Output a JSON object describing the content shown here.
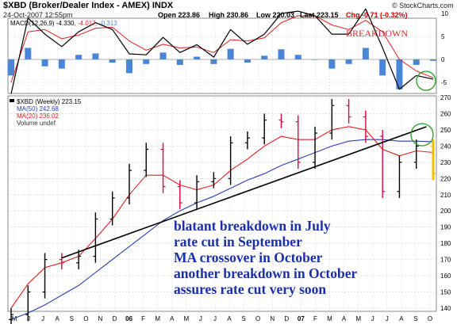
{
  "header": {
    "symbol_title": "$XBD (Broker/Dealer Index - AMEX) INDX",
    "date_time": "24-Oct-2007 12:55pm",
    "open": "Open 223.86",
    "high": "High 230.86",
    "low": "Low 220.03",
    "last": "Last 223.15",
    "chg": "Chg -0.71 (-0.32%)",
    "watermark": "© StockCharts.com"
  },
  "colors": {
    "price_bar_up": "#000000",
    "price_bar_down": "#e0003c",
    "last_bar": "#f0c000",
    "ma50": "#2a3fb0",
    "ma20": "#e02020",
    "macd_line": "#000000",
    "signal_line": "#e02020",
    "histogram": "#4a86d8",
    "trendline": "#000000",
    "annotation_text": "#1a2fa8",
    "breakdown_text": "#d03030",
    "circle": "#22a022"
  },
  "chart_data": [
    {
      "type": "line",
      "title": "MACD(12,26,9) -4.330, -4.017, -0.313",
      "legend_parts": [
        "MACD(12,26,9) -4.330,",
        "-4.017,",
        "-0.313"
      ],
      "annotation": "BREAKDOWN",
      "ylim": [
        -10,
        10
      ],
      "y_ticks": [
        10,
        5,
        0,
        -5
      ],
      "series": [
        {
          "name": "MACD",
          "x": [
            0,
            5,
            10,
            15,
            20,
            25,
            30,
            35,
            40,
            45,
            50,
            55,
            60,
            65,
            70,
            75,
            80,
            85,
            90,
            95,
            100,
            105,
            110,
            115,
            120,
            125
          ],
          "values": [
            -7.5,
            9,
            5.5,
            2.8,
            6,
            8,
            6.5,
            1.2,
            1,
            4.8,
            1.5,
            3.2,
            0.5,
            6.5,
            3.3,
            5.5,
            10,
            10.5,
            9.5,
            5.5,
            5.5,
            11,
            2.5,
            -6.5,
            -3.5,
            -4.3
          ]
        },
        {
          "name": "Signal",
          "x": [
            0,
            5,
            10,
            15,
            20,
            25,
            30,
            35,
            40,
            45,
            50,
            55,
            60,
            65,
            70,
            75,
            80,
            85,
            90,
            95,
            100,
            105,
            110,
            115,
            120,
            125
          ],
          "values": [
            -5,
            6,
            6.5,
            4.5,
            5.3,
            6.8,
            7,
            4,
            2,
            3.3,
            2.5,
            2.7,
            1.5,
            4.3,
            4,
            4.7,
            8,
            9.5,
            9.5,
            7.5,
            6.5,
            8.5,
            6,
            0,
            -2.5,
            -4
          ]
        },
        {
          "name": "Histogram",
          "values": [
            -3.5,
            2.5,
            -1.5,
            -2,
            1,
            1.3,
            -0.7,
            -3,
            -1,
            1.5,
            -1.2,
            0.6,
            -1,
            2.3,
            -0.7,
            0.8,
            2.2,
            1,
            0,
            -2,
            -1,
            2.5,
            -3.5,
            -6.5,
            -1.2,
            -0.3
          ]
        }
      ]
    },
    {
      "type": "line",
      "legend": {
        "title": "$XBD (Weekly) 223.15",
        "ma50": "MA(50) 242.68",
        "ma20": "MA(20) 236.02",
        "volume": "Volume undef"
      },
      "ylim": [
        130,
        270
      ],
      "y_ticks": [
        270,
        260,
        250,
        240,
        230,
        220,
        210,
        200,
        190,
        180,
        170,
        160,
        150,
        140
      ],
      "x_labels": [
        "M",
        "J",
        "J",
        "A",
        "S",
        "O",
        "N",
        "D",
        "06",
        "F",
        "M",
        "A",
        "M",
        "J",
        "J",
        "A",
        "S",
        "O",
        "N",
        "D",
        "07",
        "F",
        "M",
        "A",
        "M",
        "J",
        "J",
        "A",
        "S",
        "O"
      ],
      "series": [
        {
          "name": "$XBD",
          "x": [
            0,
            5,
            10,
            15,
            20,
            25,
            30,
            35,
            40,
            45,
            50,
            55,
            60,
            65,
            70,
            75,
            80,
            85,
            90,
            95,
            100,
            105,
            110,
            115,
            120,
            125
          ],
          "values": [
            136,
            150,
            170,
            168,
            172,
            195,
            208,
            225,
            238,
            215,
            205,
            218,
            220,
            242,
            245,
            256,
            255,
            230,
            248,
            265,
            258,
            246,
            212,
            230,
            240,
            223
          ]
        },
        {
          "name": "MA(50)",
          "x": [
            0,
            5,
            10,
            15,
            20,
            25,
            30,
            35,
            40,
            45,
            50,
            55,
            60,
            65,
            70,
            75,
            80,
            85,
            90,
            95,
            100,
            105,
            110,
            115,
            120,
            125
          ],
          "values": [
            133,
            137,
            142,
            148,
            154,
            162,
            170,
            178,
            186,
            194,
            200,
            205,
            209,
            214,
            219,
            223,
            228,
            232,
            236,
            240,
            243,
            244,
            244,
            243,
            243,
            242.68
          ]
        },
        {
          "name": "MA(20)",
          "x": [
            0,
            5,
            10,
            15,
            20,
            25,
            30,
            35,
            40,
            45,
            50,
            55,
            60,
            65,
            70,
            75,
            80,
            85,
            90,
            95,
            100,
            105,
            110,
            115,
            120,
            125
          ],
          "values": [
            140,
            155,
            165,
            168,
            172,
            183,
            195,
            210,
            222,
            222,
            216,
            213,
            216,
            225,
            232,
            240,
            246,
            244,
            244,
            250,
            252,
            250,
            238,
            234,
            237,
            236.02
          ]
        },
        {
          "name": "Trendline",
          "x": [
            15,
            123
          ],
          "values": [
            171,
            252
          ]
        }
      ],
      "annotation_lines": [
        "blatant breakdown in July",
        "rate cut in September",
        "MA crossover in October",
        "another breakdown in October",
        "assures rate cut very soon"
      ]
    }
  ]
}
